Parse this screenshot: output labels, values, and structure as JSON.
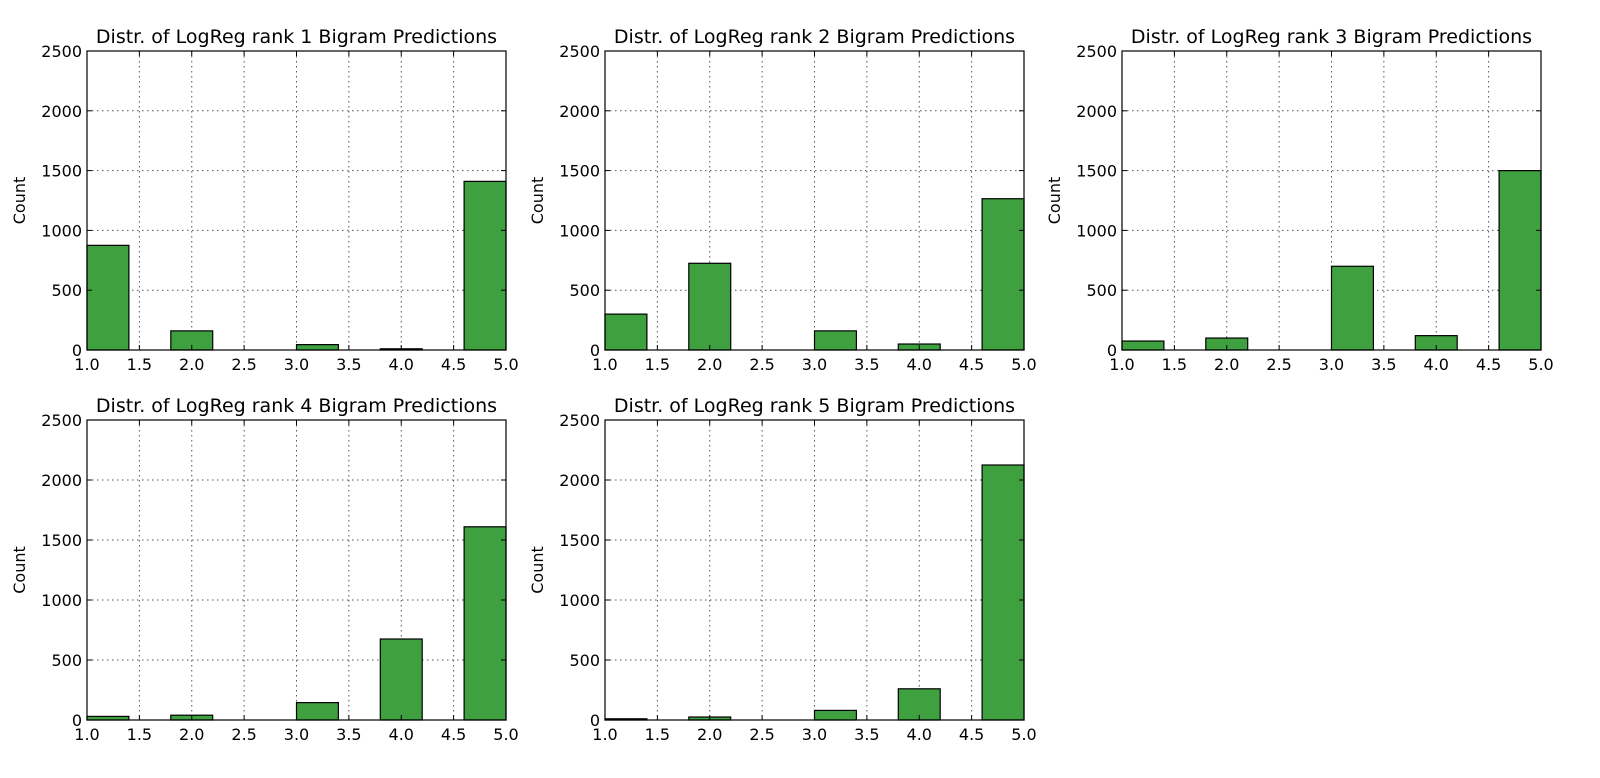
{
  "colors": {
    "bar": "#3fa03f"
  },
  "chart_data": [
    {
      "type": "bar",
      "title": "Distr. of LogReg rank 1 Bigram Predictions",
      "ylabel": "Count",
      "xlabel": "",
      "xlim": [
        1.0,
        5.0
      ],
      "ylim": [
        0,
        2500
      ],
      "grid": true,
      "xticks": [
        "1.0",
        "1.5",
        "2.0",
        "2.5",
        "3.0",
        "3.5",
        "4.0",
        "4.5",
        "5.0"
      ],
      "yticks": [
        "0",
        "500",
        "1000",
        "1500",
        "2000",
        "2500"
      ],
      "bins": [
        [
          1.0,
          1.4
        ],
        [
          1.8,
          2.2
        ],
        [
          2.2,
          2.6
        ],
        [
          2.6,
          3.0
        ],
        [
          3.0,
          3.4
        ],
        [
          3.4,
          3.8
        ],
        [
          3.8,
          4.2
        ],
        [
          4.2,
          4.6
        ],
        [
          4.6,
          5.0
        ]
      ],
      "values": [
        875,
        160,
        0,
        0,
        45,
        0,
        10,
        0,
        1410
      ]
    },
    {
      "type": "bar",
      "title": "Distr. of LogReg rank 2 Bigram Predictions",
      "ylabel": "Count",
      "xlabel": "",
      "xlim": [
        1.0,
        5.0
      ],
      "ylim": [
        0,
        2500
      ],
      "grid": true,
      "xticks": [
        "1.0",
        "1.5",
        "2.0",
        "2.5",
        "3.0",
        "3.5",
        "4.0",
        "4.5",
        "5.0"
      ],
      "yticks": [
        "0",
        "500",
        "1000",
        "1500",
        "2000",
        "2500"
      ],
      "bins": [
        [
          1.0,
          1.4
        ],
        [
          1.8,
          2.2
        ],
        [
          2.2,
          2.6
        ],
        [
          2.6,
          3.0
        ],
        [
          3.0,
          3.4
        ],
        [
          3.4,
          3.8
        ],
        [
          3.8,
          4.2
        ],
        [
          4.2,
          4.6
        ],
        [
          4.6,
          5.0
        ]
      ],
      "values": [
        300,
        725,
        0,
        0,
        160,
        0,
        50,
        0,
        1265
      ]
    },
    {
      "type": "bar",
      "title": "Distr. of LogReg rank 3 Bigram Predictions",
      "ylabel": "Count",
      "xlabel": "",
      "xlim": [
        1.0,
        5.0
      ],
      "ylim": [
        0,
        2500
      ],
      "grid": true,
      "xticks": [
        "1.0",
        "1.5",
        "2.0",
        "2.5",
        "3.0",
        "3.5",
        "4.0",
        "4.5",
        "5.0"
      ],
      "yticks": [
        "0",
        "500",
        "1000",
        "1500",
        "2000",
        "2500"
      ],
      "bins": [
        [
          1.0,
          1.4
        ],
        [
          1.8,
          2.2
        ],
        [
          2.2,
          2.6
        ],
        [
          2.6,
          3.0
        ],
        [
          3.0,
          3.4
        ],
        [
          3.4,
          3.8
        ],
        [
          3.8,
          4.2
        ],
        [
          4.2,
          4.6
        ],
        [
          4.6,
          5.0
        ]
      ],
      "values": [
        75,
        100,
        0,
        0,
        700,
        0,
        120,
        0,
        1500
      ]
    },
    {
      "type": "bar",
      "title": "Distr. of LogReg rank 4 Bigram Predictions",
      "ylabel": "Count",
      "xlabel": "",
      "xlim": [
        1.0,
        5.0
      ],
      "ylim": [
        0,
        2500
      ],
      "grid": true,
      "xticks": [
        "1.0",
        "1.5",
        "2.0",
        "2.5",
        "3.0",
        "3.5",
        "4.0",
        "4.5",
        "5.0"
      ],
      "yticks": [
        "0",
        "500",
        "1000",
        "1500",
        "2000",
        "2500"
      ],
      "bins": [
        [
          1.0,
          1.4
        ],
        [
          1.8,
          2.2
        ],
        [
          2.2,
          2.6
        ],
        [
          2.6,
          3.0
        ],
        [
          3.0,
          3.4
        ],
        [
          3.4,
          3.8
        ],
        [
          3.8,
          4.2
        ],
        [
          4.2,
          4.6
        ],
        [
          4.6,
          5.0
        ]
      ],
      "values": [
        30,
        40,
        0,
        0,
        145,
        0,
        675,
        0,
        1610
      ]
    },
    {
      "type": "bar",
      "title": "Distr. of LogReg rank 5 Bigram Predictions",
      "ylabel": "Count",
      "xlabel": "",
      "xlim": [
        1.0,
        5.0
      ],
      "ylim": [
        0,
        2500
      ],
      "grid": true,
      "xticks": [
        "1.0",
        "1.5",
        "2.0",
        "2.5",
        "3.0",
        "3.5",
        "4.0",
        "4.5",
        "5.0"
      ],
      "yticks": [
        "0",
        "500",
        "1000",
        "1500",
        "2000",
        "2500"
      ],
      "bins": [
        [
          1.0,
          1.4
        ],
        [
          1.8,
          2.2
        ],
        [
          2.2,
          2.6
        ],
        [
          2.6,
          3.0
        ],
        [
          3.0,
          3.4
        ],
        [
          3.4,
          3.8
        ],
        [
          3.8,
          4.2
        ],
        [
          4.2,
          4.6
        ],
        [
          4.6,
          5.0
        ]
      ],
      "values": [
        10,
        25,
        0,
        0,
        80,
        0,
        260,
        0,
        2125
      ]
    }
  ]
}
